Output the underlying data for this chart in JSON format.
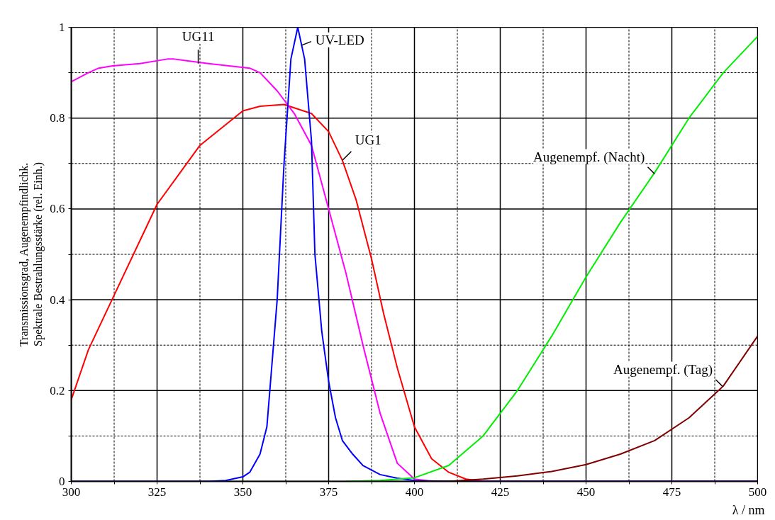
{
  "chart_data": {
    "type": "line",
    "xlabel": "λ / nm",
    "ylabel": "Transmissionsgrad, Augenempfindlichk.\nSpektrale Bestrahlungsstärke (rel. Einh.)",
    "xlim": [
      300,
      500
    ],
    "ylim": [
      0,
      1
    ],
    "xticks": [
      300,
      {
        "value": 312.5,
        "label": null
      },
      325,
      {
        "value": 337.5,
        "label": null
      },
      350,
      {
        "value": 362.5,
        "label": null
      },
      375,
      {
        "value": 387.5,
        "label": null
      },
      400,
      {
        "value": 412.5,
        "label": null
      },
      425,
      {
        "value": 437.5,
        "label": null
      },
      450,
      {
        "value": 462.5,
        "label": null
      },
      475,
      {
        "value": 487.5,
        "label": null
      },
      500
    ],
    "yticks": [
      0,
      {
        "value": 0.1,
        "label": null
      },
      0.2,
      {
        "value": 0.3,
        "label": null
      },
      0.4,
      {
        "value": 0.5,
        "label": null
      },
      0.6,
      {
        "value": 0.7,
        "label": null
      },
      0.8,
      {
        "value": 0.9,
        "label": null
      },
      1
    ],
    "grid": true,
    "marker": "none",
    "line_style": "solid",
    "series": [
      {
        "color": "#ff0000",
        "x": [
          300,
          305,
          312.5,
          320,
          325,
          337.5,
          350,
          355,
          362,
          370,
          375,
          379,
          383,
          387.5,
          391,
          395,
          400,
          405,
          410,
          415,
          420,
          500
        ],
        "values": [
          0.18,
          0.29,
          0.41,
          0.53,
          0.61,
          0.74,
          0.816,
          0.826,
          0.83,
          0.81,
          0.77,
          0.707,
          0.62,
          0.49,
          0.37,
          0.25,
          0.12,
          0.05,
          0.02,
          0.005,
          0,
          0
        ]
      },
      {
        "color": "#ff00ff",
        "x": [
          300,
          305,
          308,
          312,
          320,
          328,
          330,
          340,
          352,
          355,
          360,
          365,
          370,
          375,
          380,
          385,
          390,
          395,
          400,
          405,
          500
        ],
        "values": [
          0.88,
          0.9,
          0.91,
          0.915,
          0.92,
          0.93,
          0.93,
          0.92,
          0.91,
          0.9,
          0.86,
          0.81,
          0.74,
          0.6,
          0.46,
          0.3,
          0.15,
          0.04,
          0.005,
          0,
          0
        ]
      },
      {
        "color": "#0000ff",
        "x": [
          300,
          340,
          345,
          350,
          352,
          355,
          357,
          360,
          362,
          364,
          366,
          368,
          370,
          371,
          373,
          375,
          377,
          379,
          382,
          385,
          390,
          395,
          400,
          410,
          500
        ],
        "values": [
          0,
          0,
          0.002,
          0.01,
          0.02,
          0.06,
          0.12,
          0.4,
          0.7,
          0.93,
          1.0,
          0.93,
          0.75,
          0.5,
          0.33,
          0.22,
          0.14,
          0.09,
          0.06,
          0.035,
          0.015,
          0.007,
          0.002,
          0,
          0
        ]
      },
      {
        "color": "#00ee00",
        "x": [
          380,
          390,
          400,
          410,
          420,
          430,
          440,
          450,
          460,
          470,
          480,
          490,
          500
        ],
        "values": [
          0,
          0.002,
          0.008,
          0.035,
          0.1,
          0.2,
          0.32,
          0.45,
          0.57,
          0.68,
          0.8,
          0.9,
          0.98
        ]
      },
      {
        "color": "#800000",
        "x": [
          400,
          410,
          420,
          430,
          440,
          450,
          460,
          470,
          480,
          490,
          500
        ],
        "values": [
          0,
          0,
          0.005,
          0.012,
          0.022,
          0.037,
          0.06,
          0.09,
          0.14,
          0.21,
          0.32
        ]
      }
    ],
    "annotations": [
      {
        "text": "UG11",
        "x": 337,
        "y": 0.92
      },
      {
        "text": "UV-LED",
        "x": 367,
        "y": 0.96
      },
      {
        "text": "UG1",
        "x": 379,
        "y": 0.707
      },
      {
        "text": "Augenempf. (Nacht)",
        "x": 470,
        "y": 0.677
      },
      {
        "text": "Augenempf. (Tag)",
        "x": 489.8,
        "y": 0.209
      }
    ]
  }
}
